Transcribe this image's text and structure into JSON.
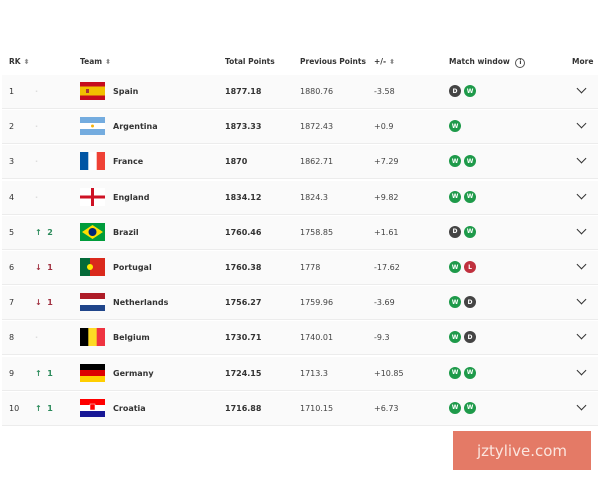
{
  "header": {
    "rk": "RK",
    "team": "Team",
    "total": "Total Points",
    "previous": "Previous Points",
    "diff": "+/-",
    "match_window": "Match window",
    "more": "More"
  },
  "colors": {
    "win": "#1e9a4a",
    "draw": "#444444",
    "loss": "#c0303e",
    "up": "#2a8a5a",
    "down": "#a03040"
  },
  "rows": [
    {
      "rank": "1",
      "move": "none",
      "move_value": "",
      "team": "Spain",
      "flag": "spain",
      "total": "1877.18",
      "previous": "1880.76",
      "diff": "-3.58",
      "window": [
        "D",
        "W"
      ]
    },
    {
      "rank": "2",
      "move": "none",
      "move_value": "",
      "team": "Argentina",
      "flag": "argentina",
      "total": "1873.33",
      "previous": "1872.43",
      "diff": "+0.9",
      "window": [
        "W"
      ]
    },
    {
      "rank": "3",
      "move": "none",
      "move_value": "",
      "team": "France",
      "flag": "france",
      "total": "1870",
      "previous": "1862.71",
      "diff": "+7.29",
      "window": [
        "W",
        "W"
      ]
    },
    {
      "rank": "4",
      "move": "none",
      "move_value": "",
      "team": "England",
      "flag": "england",
      "total": "1834.12",
      "previous": "1824.3",
      "diff": "+9.82",
      "window": [
        "W",
        "W"
      ]
    },
    {
      "rank": "5",
      "move": "up",
      "move_value": "2",
      "team": "Brazil",
      "flag": "brazil",
      "total": "1760.46",
      "previous": "1758.85",
      "diff": "+1.61",
      "window": [
        "D",
        "W"
      ]
    },
    {
      "rank": "6",
      "move": "down",
      "move_value": "1",
      "team": "Portugal",
      "flag": "portugal",
      "total": "1760.38",
      "previous": "1778",
      "diff": "-17.62",
      "window": [
        "W",
        "L"
      ]
    },
    {
      "rank": "7",
      "move": "down",
      "move_value": "1",
      "team": "Netherlands",
      "flag": "netherlands",
      "total": "1756.27",
      "previous": "1759.96",
      "diff": "-3.69",
      "window": [
        "W",
        "D"
      ]
    },
    {
      "rank": "8",
      "move": "none",
      "move_value": "",
      "team": "Belgium",
      "flag": "belgium",
      "total": "1730.71",
      "previous": "1740.01",
      "diff": "-9.3",
      "window": [
        "W",
        "D"
      ]
    },
    {
      "rank": "9",
      "move": "up",
      "move_value": "1",
      "team": "Germany",
      "flag": "germany",
      "total": "1724.15",
      "previous": "1713.3",
      "diff": "+10.85",
      "window": [
        "W",
        "W"
      ]
    },
    {
      "rank": "10",
      "move": "up",
      "move_value": "1",
      "team": "Croatia",
      "flag": "croatia",
      "total": "1716.88",
      "previous": "1710.15",
      "diff": "+6.73",
      "window": [
        "W",
        "W"
      ]
    }
  ],
  "watermark": "jztylive.com"
}
